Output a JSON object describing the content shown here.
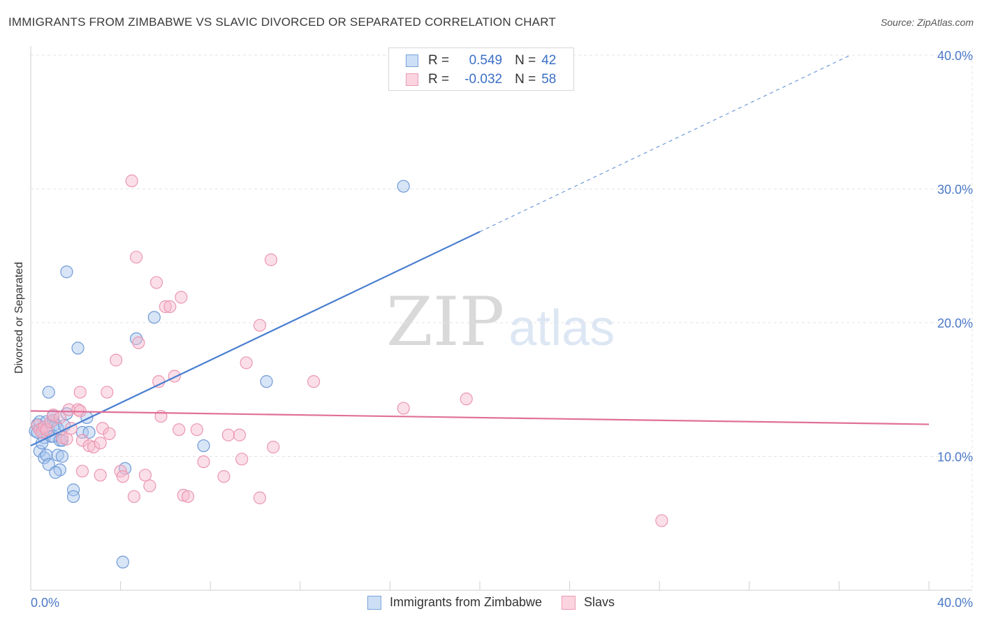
{
  "header": {
    "title": "IMMIGRANTS FROM ZIMBABWE VS SLAVIC DIVORCED OR SEPARATED CORRELATION CHART",
    "source": "Source: ZipAtlas.com"
  },
  "watermark": {
    "zip": "ZIP",
    "atlas": "atlas"
  },
  "legend": {
    "rows": [
      {
        "r_label": "R =",
        "r_value": "0.549",
        "n_label": "N =",
        "n_value": "42",
        "color": "#a9c6ee"
      },
      {
        "r_label": "R =",
        "r_value": "-0.032",
        "n_label": "N =",
        "n_value": "58",
        "color": "#f6b9cb"
      }
    ]
  },
  "bottom_legend": [
    {
      "label": "Immigrants from Zimbabwe",
      "color": "#a9c6ee"
    },
    {
      "label": "Slavs",
      "color": "#f6b9cb"
    }
  ],
  "chart_data": {
    "type": "scatter",
    "title": "IMMIGRANTS FROM ZIMBABWE VS SLAVIC DIVORCED OR SEPARATED CORRELATION CHART",
    "xlabel": "",
    "ylabel": "Divorced or Separated",
    "xlim": [
      0,
      40
    ],
    "ylim": [
      0,
      40
    ],
    "x_tick_labels": [
      "0.0%",
      "40.0%"
    ],
    "y_ticks": [
      10,
      20,
      30,
      40
    ],
    "y_tick_labels": [
      "10.0%",
      "20.0%",
      "30.0%",
      "40.0%"
    ],
    "grid": true,
    "legend_position": "top-center",
    "series": [
      {
        "name": "Immigrants from Zimbabwe",
        "color": "#4a7fd0",
        "fill": "#a9c6ee",
        "regression": {
          "r": 0.549,
          "n": 42,
          "x_start": 0.0,
          "y_start": 10.8,
          "x_end": 20.0,
          "y_end": 26.8,
          "dash_to_x": 36.5,
          "dash_to_y": 40.0
        },
        "points": [
          [
            0.2,
            11.9
          ],
          [
            0.3,
            12.4
          ],
          [
            0.4,
            12.6
          ],
          [
            0.5,
            12.1
          ],
          [
            0.6,
            11.4
          ],
          [
            0.7,
            12.6
          ],
          [
            0.8,
            12.0
          ],
          [
            0.4,
            10.4
          ],
          [
            0.5,
            11.0
          ],
          [
            0.6,
            9.9
          ],
          [
            0.7,
            10.1
          ],
          [
            0.8,
            9.4
          ],
          [
            0.9,
            11.5
          ],
          [
            1.0,
            11.5
          ],
          [
            1.0,
            12.7
          ],
          [
            1.1,
            12.4
          ],
          [
            1.2,
            10.1
          ],
          [
            1.2,
            12.1
          ],
          [
            1.3,
            9.0
          ],
          [
            1.3,
            11.2
          ],
          [
            1.4,
            11.2
          ],
          [
            1.5,
            12.3
          ],
          [
            1.6,
            13.2
          ],
          [
            1.1,
            8.8
          ],
          [
            0.8,
            14.8
          ],
          [
            1.6,
            23.8
          ],
          [
            2.1,
            18.1
          ],
          [
            1.9,
            7.5
          ],
          [
            1.9,
            7.0
          ],
          [
            2.3,
            11.8
          ],
          [
            2.5,
            12.9
          ],
          [
            2.6,
            11.8
          ],
          [
            4.2,
            9.1
          ],
          [
            4.7,
            18.8
          ],
          [
            5.5,
            20.4
          ],
          [
            7.7,
            10.8
          ],
          [
            10.5,
            15.6
          ],
          [
            16.6,
            30.2
          ],
          [
            4.1,
            2.1
          ],
          [
            1.4,
            10.0
          ],
          [
            0.3,
            11.8
          ],
          [
            1.0,
            13.0
          ]
        ]
      },
      {
        "name": "Slavs",
        "color": "#e07099",
        "fill": "#f6b9cb",
        "regression": {
          "r": -0.032,
          "n": 58,
          "x_start": 0.0,
          "y_start": 13.4,
          "x_end": 40.0,
          "y_end": 12.4
        },
        "points": [
          [
            0.3,
            12.3
          ],
          [
            0.4,
            12.0
          ],
          [
            0.5,
            11.8
          ],
          [
            0.6,
            12.2
          ],
          [
            0.7,
            12.0
          ],
          [
            0.9,
            12.6
          ],
          [
            1.0,
            13.1
          ],
          [
            1.3,
            12.9
          ],
          [
            1.4,
            11.4
          ],
          [
            1.6,
            11.3
          ],
          [
            1.7,
            13.5
          ],
          [
            1.8,
            12.1
          ],
          [
            2.1,
            13.5
          ],
          [
            2.2,
            13.4
          ],
          [
            2.3,
            11.2
          ],
          [
            2.6,
            10.8
          ],
          [
            2.8,
            10.7
          ],
          [
            3.1,
            11.0
          ],
          [
            3.2,
            12.1
          ],
          [
            3.5,
            11.7
          ],
          [
            3.4,
            14.8
          ],
          [
            3.8,
            17.2
          ],
          [
            2.2,
            14.8
          ],
          [
            2.3,
            8.9
          ],
          [
            3.1,
            8.6
          ],
          [
            4.0,
            8.9
          ],
          [
            4.1,
            8.5
          ],
          [
            4.6,
            7.0
          ],
          [
            5.1,
            8.6
          ],
          [
            5.3,
            7.8
          ],
          [
            4.5,
            30.6
          ],
          [
            4.7,
            24.9
          ],
          [
            4.8,
            18.5
          ],
          [
            5.6,
            23.0
          ],
          [
            5.7,
            15.6
          ],
          [
            5.8,
            13.0
          ],
          [
            6.0,
            21.2
          ],
          [
            6.2,
            21.2
          ],
          [
            6.4,
            16.0
          ],
          [
            6.6,
            12.0
          ],
          [
            6.7,
            21.9
          ],
          [
            6.8,
            7.1
          ],
          [
            7.0,
            7.0
          ],
          [
            7.4,
            12.0
          ],
          [
            7.7,
            9.6
          ],
          [
            8.6,
            8.5
          ],
          [
            8.8,
            11.6
          ],
          [
            9.3,
            11.6
          ],
          [
            9.4,
            9.8
          ],
          [
            9.6,
            17.0
          ],
          [
            10.2,
            19.8
          ],
          [
            10.2,
            6.9
          ],
          [
            10.8,
            10.7
          ],
          [
            10.7,
            24.7
          ],
          [
            12.6,
            15.6
          ],
          [
            16.6,
            13.6
          ],
          [
            19.4,
            14.3
          ],
          [
            28.1,
            5.2
          ]
        ]
      }
    ],
    "extra_points_note": ""
  }
}
